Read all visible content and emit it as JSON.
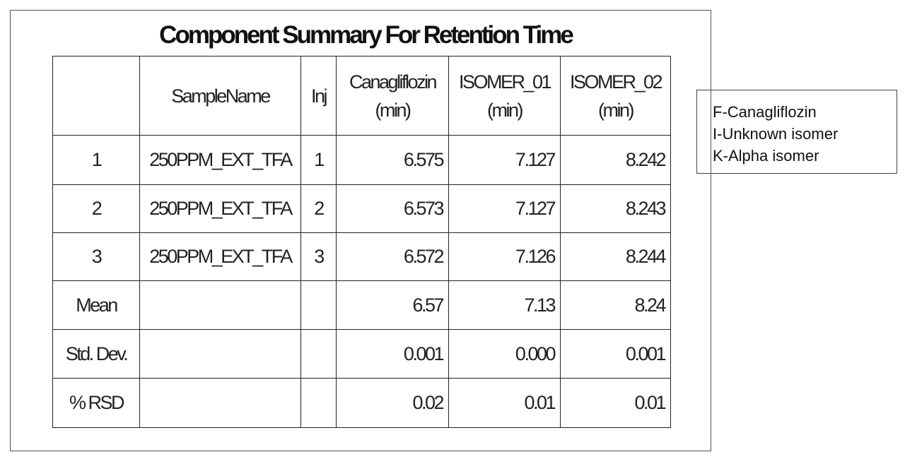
{
  "header": {
    "title": "Component Summary For Retention Time"
  },
  "table": {
    "columns": [
      [
        "SampleName"
      ],
      [
        "Inj"
      ],
      [
        "Canagliflozin",
        "(min)"
      ],
      [
        "ISOMER_01",
        "(min)"
      ],
      [
        "ISOMER_02",
        "(min)"
      ]
    ],
    "rows": [
      [
        "1",
        "250PPM_EXT_TFA",
        "1",
        "6.575",
        "7.127",
        "8.242"
      ],
      [
        "2",
        "250PPM_EXT_TFA",
        "2",
        "6.573",
        "7.127",
        "8.243"
      ],
      [
        "3",
        "250PPM_EXT_TFA",
        "3",
        "6.572",
        "7.126",
        "8.244"
      ],
      [
        "Mean",
        null,
        null,
        "6.57",
        "7.13",
        "8.24"
      ],
      [
        "Std. Dev.",
        null,
        null,
        "0.001",
        "0.000",
        "0.001"
      ],
      [
        "% RSD",
        null,
        null,
        "0.02",
        "0.01",
        "0.01"
      ]
    ]
  },
  "legend": {
    "items": [
      "F-Canagliflozin",
      "I-Unknown isomer",
      "K-Alpha isomer"
    ]
  }
}
